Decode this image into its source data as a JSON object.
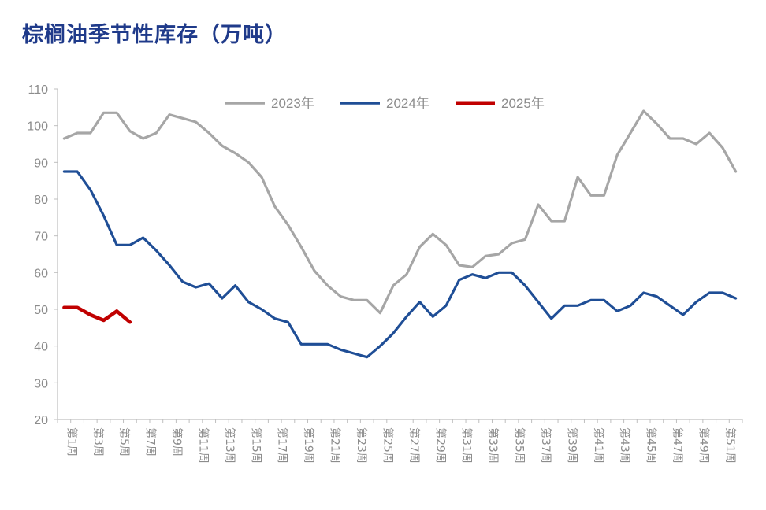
{
  "title": "棕榈油季节性库存（万吨）",
  "chart_data": {
    "type": "line",
    "title": "棕榈油季节性库存（万吨）",
    "ylim": [
      20,
      110
    ],
    "yticks": [
      20,
      30,
      40,
      50,
      60,
      70,
      80,
      90,
      100,
      110
    ],
    "x_count": 52,
    "x_tick_labels": [
      {
        "week": 1,
        "label": "第1周"
      },
      {
        "week": 3,
        "label": "第3周"
      },
      {
        "week": 5,
        "label": "第5周"
      },
      {
        "week": 7,
        "label": "第7周"
      },
      {
        "week": 9,
        "label": "第9周"
      },
      {
        "week": 11,
        "label": "第11周"
      },
      {
        "week": 13,
        "label": "第13周"
      },
      {
        "week": 15,
        "label": "第15周"
      },
      {
        "week": 17,
        "label": "第17周"
      },
      {
        "week": 19,
        "label": "第19周"
      },
      {
        "week": 21,
        "label": "第21周"
      },
      {
        "week": 23,
        "label": "第23周"
      },
      {
        "week": 25,
        "label": "第25周"
      },
      {
        "week": 27,
        "label": "第27周"
      },
      {
        "week": 29,
        "label": "第29周"
      },
      {
        "week": 31,
        "label": "第31周"
      },
      {
        "week": 33,
        "label": "第33周"
      },
      {
        "week": 35,
        "label": "第35周"
      },
      {
        "week": 37,
        "label": "第37周"
      },
      {
        "week": 39,
        "label": "第39周"
      },
      {
        "week": 41,
        "label": "第41周"
      },
      {
        "week": 43,
        "label": "第43周"
      },
      {
        "week": 45,
        "label": "第45周"
      },
      {
        "week": 47,
        "label": "第47周"
      },
      {
        "week": 49,
        "label": "第49周"
      },
      {
        "week": 51,
        "label": "第51周"
      }
    ],
    "legend_position": "top",
    "grid": false,
    "series": [
      {
        "name": "2023年",
        "color": "#a6a6a6",
        "values": [
          96.5,
          98,
          98,
          103.5,
          103.5,
          98.5,
          96.5,
          98,
          103,
          102,
          101,
          98,
          94.5,
          92.5,
          90,
          86,
          78,
          73,
          67,
          60.5,
          56.5,
          53.5,
          52.5,
          52.5,
          49,
          56.5,
          59.5,
          67,
          70.5,
          67.5,
          62,
          61.5,
          64.5,
          65,
          68,
          69,
          78.5,
          74,
          74,
          86,
          81,
          81,
          92,
          98,
          104,
          100.5,
          96.5,
          96.5,
          95,
          98,
          94,
          87.5
        ]
      },
      {
        "name": "2024年",
        "color": "#1f4e96",
        "values": [
          87.5,
          87.5,
          82.5,
          75.5,
          67.5,
          67.5,
          69.5,
          66,
          62,
          57.5,
          56,
          57,
          53,
          56.5,
          52,
          50,
          47.5,
          46.5,
          40.5,
          40.5,
          40.5,
          39,
          38,
          37,
          40,
          43.5,
          48,
          52,
          48,
          51,
          58,
          59.5,
          58.5,
          60,
          60,
          56.5,
          52,
          47.5,
          51,
          51,
          52.5,
          52.5,
          49.5,
          51,
          54.5,
          53.5,
          51,
          48.5,
          52,
          54.5,
          54.5,
          53
        ]
      },
      {
        "name": "2025年",
        "color": "#c00000",
        "values": [
          50.5,
          50.5,
          48.5,
          47,
          49.5,
          46.5
        ]
      }
    ]
  }
}
